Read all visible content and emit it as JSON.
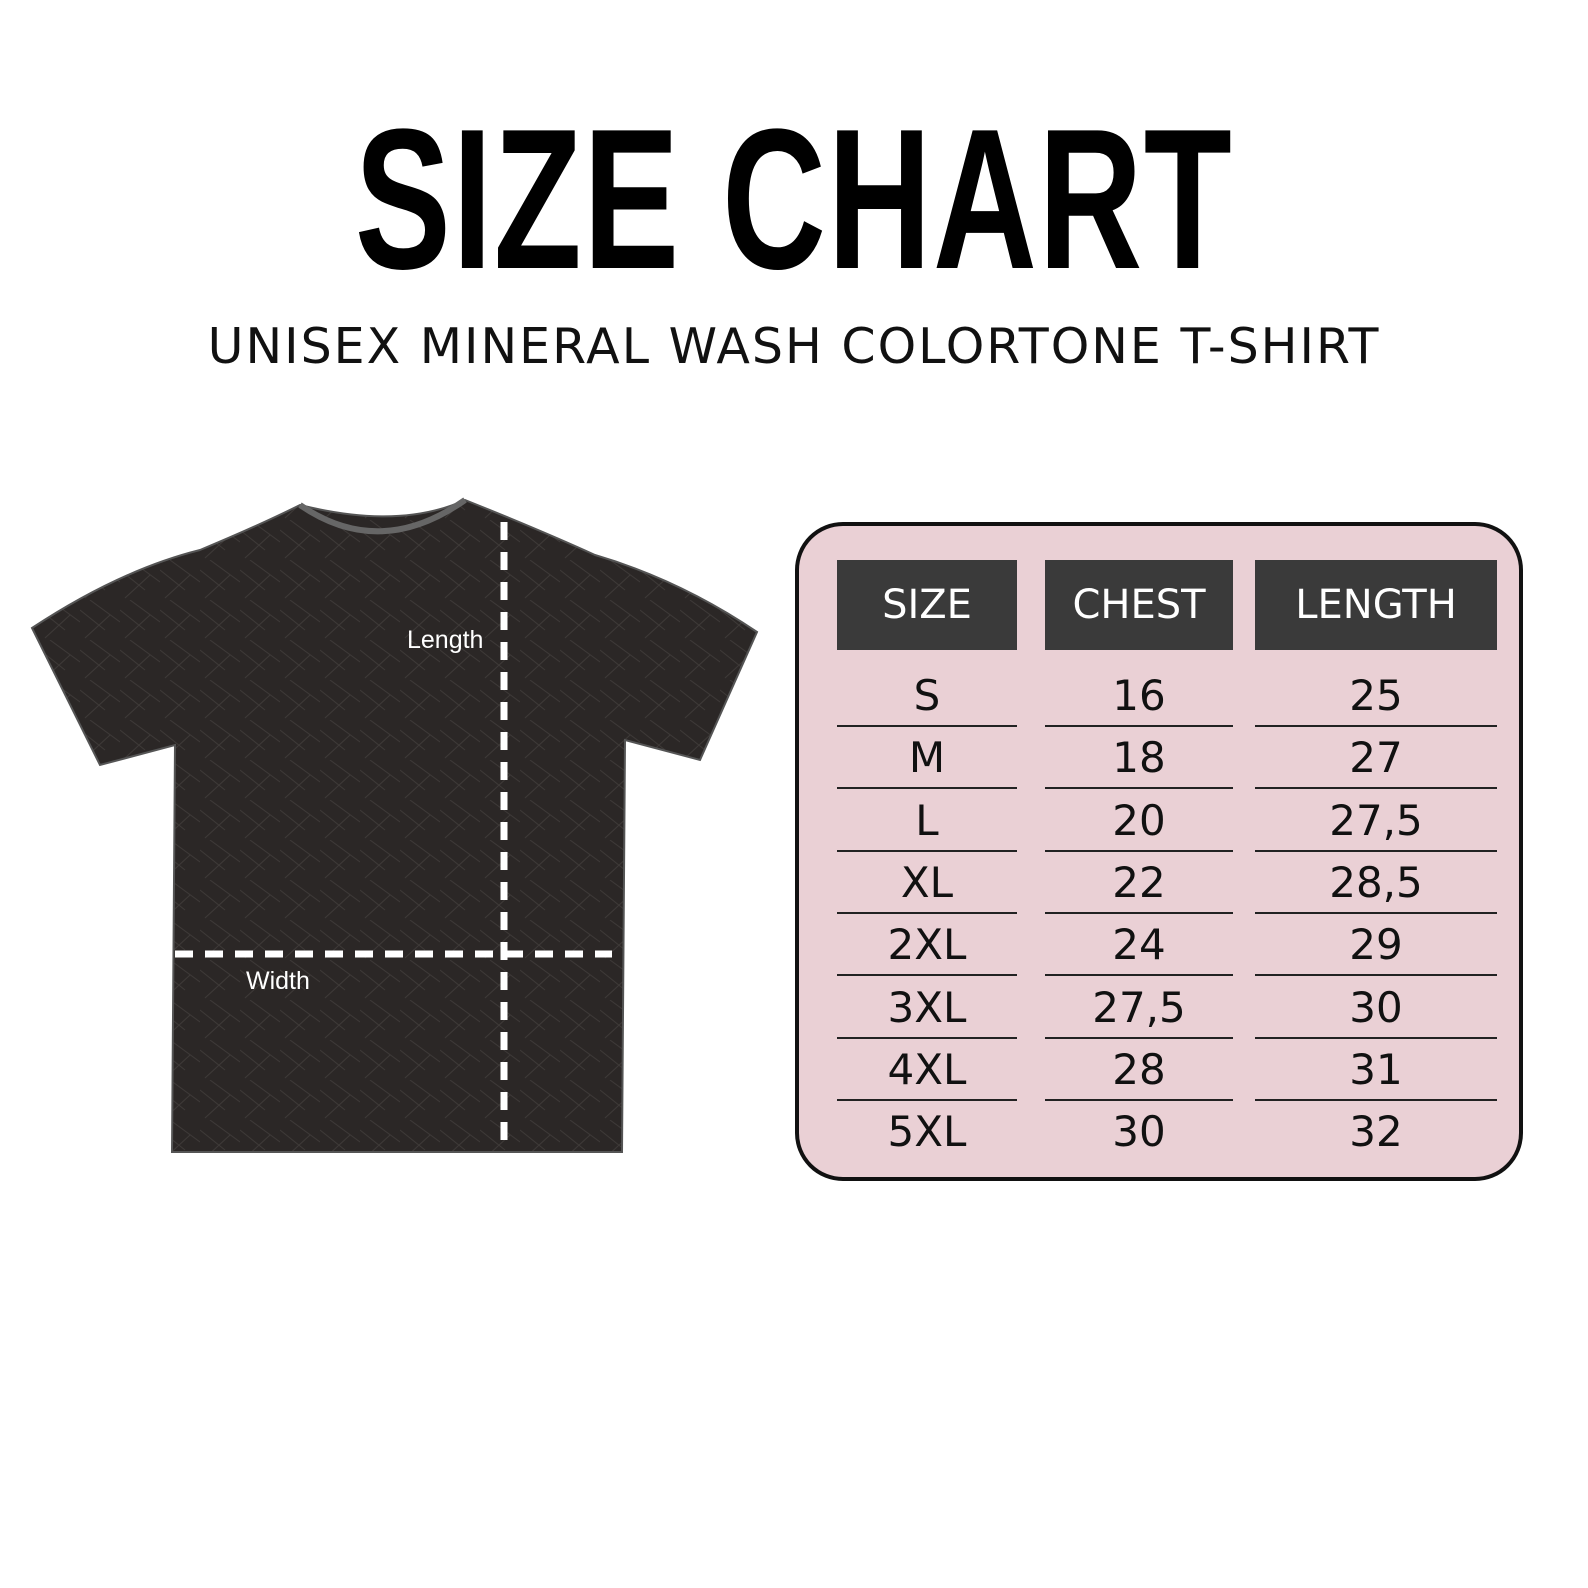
{
  "title": "SIZE CHART",
  "subtitle": "UNISEX MINERAL WASH COLORTONE T-SHIRT",
  "shirt": {
    "length_label": "Length",
    "width_label": "Width",
    "color": "#2b2726"
  },
  "table": {
    "background": "#ead0d5",
    "header_color": "#3a3a3a",
    "headers": [
      "SIZE",
      "CHEST",
      "LENGTH"
    ],
    "rows": [
      [
        "S",
        "16",
        "25"
      ],
      [
        "M",
        "18",
        "27"
      ],
      [
        "L",
        "20",
        "27,5"
      ],
      [
        "XL",
        "22",
        "28,5"
      ],
      [
        "2XL",
        "24",
        "29"
      ],
      [
        "3XL",
        "27,5",
        "30"
      ],
      [
        "4XL",
        "28",
        "31"
      ],
      [
        "5XL",
        "30",
        "32"
      ]
    ]
  }
}
